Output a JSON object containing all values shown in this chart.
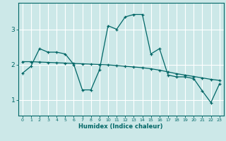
{
  "xlabel": "Humidex (Indice chaleur)",
  "ylabel": "",
  "background_color": "#cce8e8",
  "grid_color": "#ffffff",
  "line_color": "#006666",
  "xlim": [
    -0.5,
    23.5
  ],
  "ylim": [
    0.55,
    3.75
  ],
  "yticks": [
    1,
    2,
    3
  ],
  "xticks": [
    0,
    1,
    2,
    3,
    4,
    5,
    6,
    7,
    8,
    9,
    10,
    11,
    12,
    13,
    14,
    15,
    16,
    17,
    18,
    19,
    20,
    21,
    22,
    23
  ],
  "line1_x": [
    0,
    1,
    2,
    3,
    4,
    5,
    6,
    7,
    8,
    9,
    10,
    11,
    12,
    13,
    14,
    15,
    16,
    17,
    18,
    19,
    20,
    21,
    22,
    23
  ],
  "line1_y": [
    1.75,
    1.95,
    2.45,
    2.35,
    2.35,
    2.3,
    2.0,
    1.28,
    1.28,
    1.85,
    3.1,
    3.0,
    3.35,
    3.42,
    3.42,
    2.3,
    2.45,
    1.7,
    1.65,
    1.65,
    1.6,
    1.25,
    0.92,
    1.45
  ],
  "line2_x": [
    0,
    1,
    2,
    3,
    4,
    5,
    6,
    7,
    8,
    9,
    10,
    11,
    12,
    13,
    14,
    15,
    16,
    17,
    18,
    19,
    20,
    21,
    22,
    23
  ],
  "line2_y": [
    2.08,
    2.08,
    2.07,
    2.06,
    2.05,
    2.04,
    2.03,
    2.02,
    2.01,
    2.0,
    1.99,
    1.97,
    1.95,
    1.93,
    1.91,
    1.88,
    1.84,
    1.79,
    1.74,
    1.7,
    1.66,
    1.62,
    1.58,
    1.55
  ]
}
